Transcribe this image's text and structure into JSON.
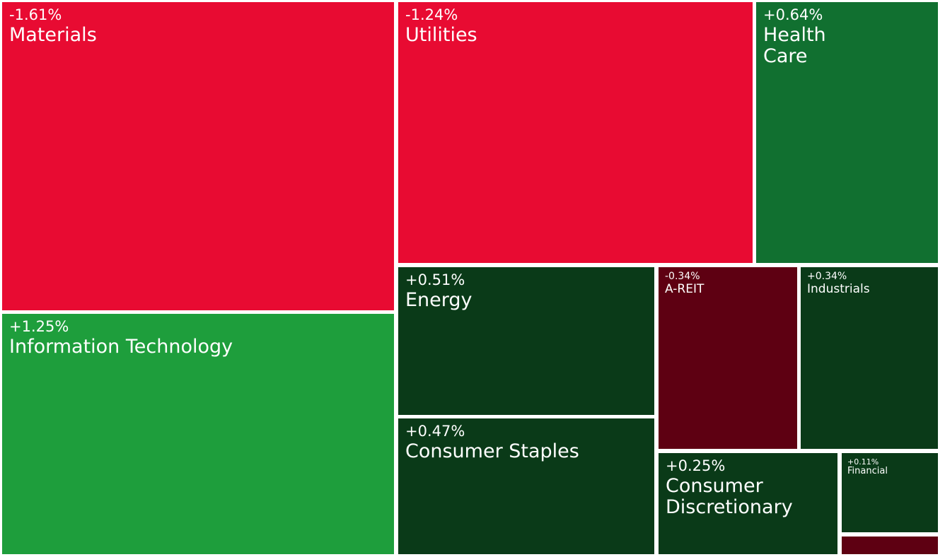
{
  "chart_data": {
    "type": "treemap",
    "colors": {
      "strong_down": "#e80b32",
      "mild_down": "#5e0012",
      "strong_up": "#1e9e3c",
      "medium_up": "#117030",
      "mild_up": "#0a3a18"
    },
    "items": [
      {
        "id": "materials",
        "name": "Materials",
        "change": "-1.61%",
        "value": -1.61,
        "color": "#e80b32",
        "size": "xl"
      },
      {
        "id": "information-technology",
        "name": "Information Technology",
        "change": "+1.25%",
        "value": 1.25,
        "color": "#1e9e3c",
        "size": "xl"
      },
      {
        "id": "utilities",
        "name": "Utilities",
        "change": "-1.24%",
        "value": -1.24,
        "color": "#e80b32",
        "size": "xl"
      },
      {
        "id": "health-care",
        "name": "Health Care",
        "change": "+0.64%",
        "value": 0.64,
        "color": "#117030",
        "size": "xl"
      },
      {
        "id": "energy",
        "name": "Energy",
        "change": "+0.51%",
        "value": 0.51,
        "color": "#0a3a18",
        "size": "xl"
      },
      {
        "id": "consumer-staples",
        "name": "Consumer Staples",
        "change": "+0.47%",
        "value": 0.47,
        "color": "#0a3a18",
        "size": "xl"
      },
      {
        "id": "a-reit",
        "name": "A-REIT",
        "change": "-0.34%",
        "value": -0.34,
        "color": "#5e0012",
        "size": "sm"
      },
      {
        "id": "industrials",
        "name": "Industrials",
        "change": "+0.34%",
        "value": 0.34,
        "color": "#0a3a18",
        "size": "sm"
      },
      {
        "id": "consumer-discretionary",
        "name": "Consumer Discretionary",
        "change": "+0.25%",
        "value": 0.25,
        "color": "#0a3a18",
        "size": "xl"
      },
      {
        "id": "financial",
        "name": "Financial",
        "change": "+0.11%",
        "value": 0.11,
        "color": "#0a3a18",
        "size": "xs"
      },
      {
        "id": "unlabeled-small",
        "name": "",
        "change": "",
        "value": null,
        "color": "#5e0012",
        "size": "xs"
      }
    ]
  }
}
